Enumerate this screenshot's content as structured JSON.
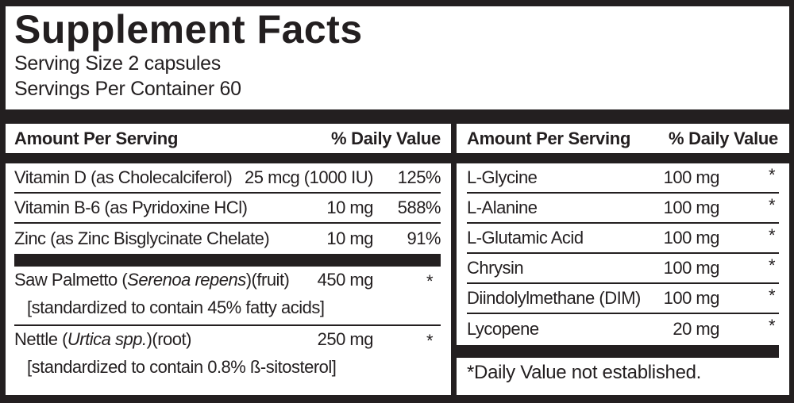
{
  "colors": {
    "ink": "#231f20",
    "paper": "#ffffff"
  },
  "header": {
    "title": "Supplement Facts",
    "serving_size": "Serving Size 2 capsules",
    "servings_per_container": "Servings Per Container 60"
  },
  "left_column": {
    "header": {
      "amount_label": "Amount Per Serving",
      "dv_label": "% Daily Value"
    },
    "nutrient_rows": [
      {
        "name": "Vitamin D (as Cholecalciferol)",
        "amount": "25 mcg (1000 IU)",
        "daily_value": "125%"
      },
      {
        "name": "Vitamin B-6 (as Pyridoxine HCl)",
        "amount": "10 mg",
        "daily_value": "588%"
      },
      {
        "name": "Zinc (as Zinc Bisglycinate Chelate)",
        "amount": "10 mg",
        "daily_value": "91%"
      }
    ],
    "botanical_rows": [
      {
        "name_prefix": "Saw Palmetto (",
        "name_latin": "Serenoa repens",
        "name_suffix": ")(fruit)",
        "amount": "450 mg",
        "daily_value": "*",
        "standardization": "[standardized to contain 45% fatty acids]"
      },
      {
        "name_prefix": "Nettle (",
        "name_latin": "Urtica spp.",
        "name_suffix": ")(root)",
        "amount": "250 mg",
        "daily_value": "*",
        "standardization": "[standardized to contain 0.8% ß-sitosterol]"
      }
    ]
  },
  "right_column": {
    "header": {
      "amount_label": "Amount Per Serving",
      "dv_label": "% Daily Value"
    },
    "nutrient_rows": [
      {
        "name": "L-Glycine",
        "amount": "100 mg",
        "daily_value": "*"
      },
      {
        "name": "L-Alanine",
        "amount": "100 mg",
        "daily_value": "*"
      },
      {
        "name": "L-Glutamic Acid",
        "amount": "100 mg",
        "daily_value": "*"
      },
      {
        "name": "Chrysin",
        "amount": "100 mg",
        "daily_value": "*"
      },
      {
        "name": "Diindolylmethane (DIM)",
        "amount": "100 mg",
        "daily_value": "*"
      },
      {
        "name": "Lycopene",
        "amount": "20 mg",
        "daily_value": "*"
      }
    ],
    "footnote": "*Daily Value not established."
  }
}
